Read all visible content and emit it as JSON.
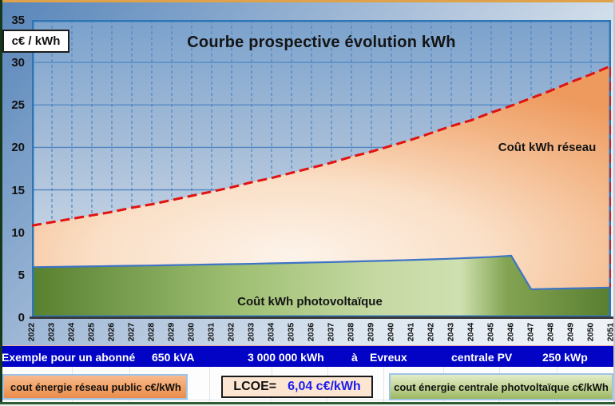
{
  "chart_data": {
    "type": "area",
    "title": "Courbe prospective évolution kWh",
    "y_axis_unit_label": "c€ / kWh",
    "ylim": [
      0,
      35
    ],
    "yticks": [
      35,
      30,
      25,
      20,
      15,
      10,
      5,
      0
    ],
    "grid": "horizontal solid blue, vertical dashed blue per year",
    "legend_position": "labels inside plot",
    "categories": [
      "2022",
      "2023",
      "2024",
      "2025",
      "2026",
      "2027",
      "2028",
      "2029",
      "2030",
      "2031",
      "2032",
      "2033",
      "2034",
      "2035",
      "2036",
      "2037",
      "2038",
      "2039",
      "2040",
      "2041",
      "2042",
      "2043",
      "2044",
      "2045",
      "2046",
      "2047",
      "2048",
      "2049",
      "2050",
      "2051"
    ],
    "series": [
      {
        "name": "Coût kWh réseau",
        "values": [
          10.8,
          11.2,
          11.6,
          12.0,
          12.4,
          12.9,
          13.3,
          13.8,
          14.3,
          14.8,
          15.3,
          15.9,
          16.4,
          17.0,
          17.6,
          18.2,
          18.9,
          19.5,
          20.2,
          20.9,
          21.7,
          22.5,
          23.2,
          24.1,
          24.9,
          25.8,
          26.7,
          27.7,
          28.6,
          29.6
        ],
        "line_color": "#e11212",
        "line_style": "dashed",
        "fill": "orange gradient"
      },
      {
        "name": "Coût kWh photovoltaïque",
        "values": [
          5.9,
          5.93,
          5.96,
          6.0,
          6.03,
          6.07,
          6.1,
          6.14,
          6.18,
          6.22,
          6.26,
          6.3,
          6.35,
          6.4,
          6.45,
          6.5,
          6.56,
          6.62,
          6.68,
          6.75,
          6.82,
          6.9,
          7.0,
          7.1,
          7.25,
          3.3,
          3.35,
          3.4,
          3.45,
          3.5
        ],
        "line_color": "#3f74c5",
        "line_style": "solid",
        "fill": "green gradient"
      }
    ]
  },
  "info_bar": {
    "items": [
      "Exemple pour un abonné",
      "650 kVA",
      "3 000 000 kWh",
      "à",
      "Evreux",
      "centrale PV",
      "250 kWp"
    ]
  },
  "legend": {
    "network_label": "cout énergie réseau public c€/kWh",
    "pv_label": "cout énergie centrale photvoltaïque c€/kWh",
    "lcoe_label": "LCOE=",
    "lcoe_value": "6,04 c€/kWh"
  },
  "colors": {
    "info_bar_bg": "#0203c4",
    "network_line": "#e11212",
    "pv_line": "#3f74c5",
    "plot_border": "#2e75b6",
    "lcoe_value_color": "#1d1dee",
    "frame_top": "#dfa24b",
    "frame_bottom": "#2e5c33"
  }
}
